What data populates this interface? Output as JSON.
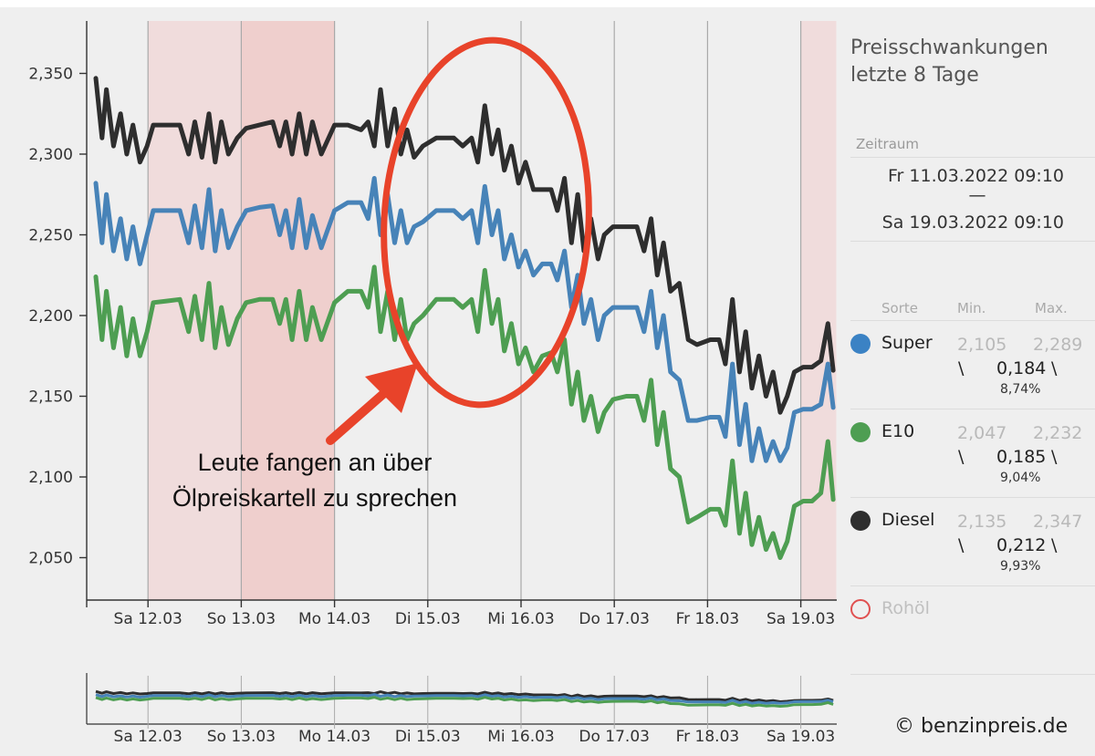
{
  "chart_data": {
    "type": "line",
    "title": "Preisschwankungen letzte 8 Tage",
    "ylim": [
      2.0,
      2.375
    ],
    "y_ticks": [
      "2,350",
      "2,300",
      "2,250",
      "2,200",
      "2,150",
      "2,100",
      "2,050"
    ],
    "y_tick_values": [
      2.35,
      2.3,
      2.25,
      2.2,
      2.15,
      2.1,
      2.05
    ],
    "x_ticks": [
      "Sa 12.03",
      "So 13.03",
      "Mo 14.03",
      "Di 15.03",
      "Mi 16.03",
      "Do 17.03",
      "Fr 18.03",
      "Sa 19.03"
    ],
    "x_tick_days": [
      1,
      2,
      3,
      4,
      5,
      6,
      7,
      8
    ],
    "x_range_days": [
      0,
      8
    ],
    "weekend_shading": [
      {
        "from": 1.0,
        "to": 2.0,
        "color": "#f0dcdc"
      },
      {
        "from": 2.0,
        "to": 3.0,
        "color": "#efcfcd"
      },
      {
        "from": 8.0,
        "to": 8.38,
        "color": "#f0dcdc"
      }
    ],
    "series": [
      {
        "name": "Diesel",
        "color": "#2e2e2e",
        "points": [
          [
            0.0,
            2.347
          ],
          [
            0.07,
            2.31
          ],
          [
            0.12,
            2.34
          ],
          [
            0.2,
            2.305
          ],
          [
            0.28,
            2.325
          ],
          [
            0.35,
            2.3
          ],
          [
            0.42,
            2.318
          ],
          [
            0.5,
            2.295
          ],
          [
            0.58,
            2.305
          ],
          [
            0.65,
            2.318
          ],
          [
            0.8,
            2.318
          ],
          [
            0.95,
            2.318
          ],
          [
            1.05,
            2.3
          ],
          [
            1.12,
            2.32
          ],
          [
            1.2,
            2.298
          ],
          [
            1.28,
            2.325
          ],
          [
            1.35,
            2.295
          ],
          [
            1.42,
            2.32
          ],
          [
            1.5,
            2.3
          ],
          [
            1.6,
            2.31
          ],
          [
            1.7,
            2.316
          ],
          [
            1.85,
            2.318
          ],
          [
            2.0,
            2.32
          ],
          [
            2.08,
            2.305
          ],
          [
            2.15,
            2.32
          ],
          [
            2.22,
            2.3
          ],
          [
            2.3,
            2.325
          ],
          [
            2.38,
            2.3
          ],
          [
            2.45,
            2.32
          ],
          [
            2.55,
            2.3
          ],
          [
            2.7,
            2.318
          ],
          [
            2.85,
            2.318
          ],
          [
            3.0,
            2.315
          ],
          [
            3.08,
            2.32
          ],
          [
            3.15,
            2.305
          ],
          [
            3.22,
            2.34
          ],
          [
            3.3,
            2.305
          ],
          [
            3.38,
            2.328
          ],
          [
            3.45,
            2.3
          ],
          [
            3.52,
            2.315
          ],
          [
            3.6,
            2.298
          ],
          [
            3.7,
            2.305
          ],
          [
            3.85,
            2.31
          ],
          [
            4.05,
            2.31
          ],
          [
            4.15,
            2.305
          ],
          [
            4.25,
            2.31
          ],
          [
            4.32,
            2.295
          ],
          [
            4.4,
            2.33
          ],
          [
            4.48,
            2.3
          ],
          [
            4.55,
            2.315
          ],
          [
            4.62,
            2.29
          ],
          [
            4.7,
            2.305
          ],
          [
            4.78,
            2.282
          ],
          [
            4.86,
            2.295
          ],
          [
            4.95,
            2.278
          ],
          [
            5.05,
            2.278
          ],
          [
            5.15,
            2.278
          ],
          [
            5.22,
            2.265
          ],
          [
            5.3,
            2.285
          ],
          [
            5.38,
            2.245
          ],
          [
            5.45,
            2.275
          ],
          [
            5.52,
            2.24
          ],
          [
            5.6,
            2.26
          ],
          [
            5.68,
            2.235
          ],
          [
            5.75,
            2.25
          ],
          [
            5.85,
            2.255
          ],
          [
            6.0,
            2.255
          ],
          [
            6.12,
            2.255
          ],
          [
            6.2,
            2.24
          ],
          [
            6.28,
            2.26
          ],
          [
            6.35,
            2.225
          ],
          [
            6.42,
            2.245
          ],
          [
            6.5,
            2.215
          ],
          [
            6.6,
            2.22
          ],
          [
            6.7,
            2.185
          ],
          [
            6.8,
            2.182
          ],
          [
            6.95,
            2.185
          ],
          [
            7.05,
            2.185
          ],
          [
            7.12,
            2.17
          ],
          [
            7.2,
            2.21
          ],
          [
            7.28,
            2.165
          ],
          [
            7.35,
            2.19
          ],
          [
            7.42,
            2.155
          ],
          [
            7.5,
            2.175
          ],
          [
            7.58,
            2.15
          ],
          [
            7.66,
            2.165
          ],
          [
            7.74,
            2.14
          ],
          [
            7.82,
            2.15
          ],
          [
            7.9,
            2.165
          ],
          [
            8.0,
            2.168
          ],
          [
            8.1,
            2.168
          ],
          [
            8.2,
            2.172
          ],
          [
            8.28,
            2.195
          ],
          [
            8.34,
            2.166
          ]
        ]
      },
      {
        "name": "Super",
        "color": "#4783b8",
        "points": [
          [
            0.0,
            2.282
          ],
          [
            0.07,
            2.245
          ],
          [
            0.12,
            2.275
          ],
          [
            0.2,
            2.24
          ],
          [
            0.28,
            2.26
          ],
          [
            0.35,
            2.235
          ],
          [
            0.42,
            2.255
          ],
          [
            0.5,
            2.232
          ],
          [
            0.58,
            2.25
          ],
          [
            0.65,
            2.265
          ],
          [
            0.8,
            2.265
          ],
          [
            0.95,
            2.265
          ],
          [
            1.05,
            2.245
          ],
          [
            1.12,
            2.268
          ],
          [
            1.2,
            2.242
          ],
          [
            1.28,
            2.278
          ],
          [
            1.35,
            2.24
          ],
          [
            1.42,
            2.265
          ],
          [
            1.5,
            2.242
          ],
          [
            1.6,
            2.255
          ],
          [
            1.7,
            2.265
          ],
          [
            1.85,
            2.267
          ],
          [
            2.0,
            2.268
          ],
          [
            2.08,
            2.25
          ],
          [
            2.15,
            2.265
          ],
          [
            2.22,
            2.242
          ],
          [
            2.3,
            2.272
          ],
          [
            2.38,
            2.242
          ],
          [
            2.45,
            2.262
          ],
          [
            2.55,
            2.242
          ],
          [
            2.7,
            2.265
          ],
          [
            2.85,
            2.27
          ],
          [
            3.0,
            2.27
          ],
          [
            3.08,
            2.26
          ],
          [
            3.15,
            2.285
          ],
          [
            3.22,
            2.25
          ],
          [
            3.3,
            2.275
          ],
          [
            3.38,
            2.245
          ],
          [
            3.45,
            2.265
          ],
          [
            3.52,
            2.245
          ],
          [
            3.6,
            2.255
          ],
          [
            3.7,
            2.258
          ],
          [
            3.85,
            2.265
          ],
          [
            4.05,
            2.265
          ],
          [
            4.15,
            2.26
          ],
          [
            4.25,
            2.265
          ],
          [
            4.32,
            2.245
          ],
          [
            4.4,
            2.28
          ],
          [
            4.48,
            2.25
          ],
          [
            4.55,
            2.265
          ],
          [
            4.62,
            2.235
          ],
          [
            4.7,
            2.25
          ],
          [
            4.78,
            2.23
          ],
          [
            4.86,
            2.24
          ],
          [
            4.95,
            2.225
          ],
          [
            5.05,
            2.232
          ],
          [
            5.15,
            2.232
          ],
          [
            5.22,
            2.222
          ],
          [
            5.3,
            2.24
          ],
          [
            5.38,
            2.205
          ],
          [
            5.45,
            2.225
          ],
          [
            5.52,
            2.195
          ],
          [
            5.6,
            2.21
          ],
          [
            5.68,
            2.185
          ],
          [
            5.75,
            2.2
          ],
          [
            5.85,
            2.205
          ],
          [
            6.0,
            2.205
          ],
          [
            6.12,
            2.205
          ],
          [
            6.2,
            2.19
          ],
          [
            6.28,
            2.215
          ],
          [
            6.35,
            2.18
          ],
          [
            6.42,
            2.2
          ],
          [
            6.5,
            2.165
          ],
          [
            6.6,
            2.16
          ],
          [
            6.7,
            2.135
          ],
          [
            6.8,
            2.135
          ],
          [
            6.95,
            2.137
          ],
          [
            7.05,
            2.137
          ],
          [
            7.12,
            2.125
          ],
          [
            7.2,
            2.17
          ],
          [
            7.28,
            2.12
          ],
          [
            7.35,
            2.145
          ],
          [
            7.42,
            2.11
          ],
          [
            7.5,
            2.13
          ],
          [
            7.58,
            2.11
          ],
          [
            7.66,
            2.122
          ],
          [
            7.74,
            2.11
          ],
          [
            7.82,
            2.118
          ],
          [
            7.9,
            2.14
          ],
          [
            8.0,
            2.142
          ],
          [
            8.1,
            2.142
          ],
          [
            8.2,
            2.145
          ],
          [
            8.28,
            2.17
          ],
          [
            8.34,
            2.143
          ]
        ]
      },
      {
        "name": "E10",
        "color": "#4e9e52",
        "points": [
          [
            0.0,
            2.224
          ],
          [
            0.07,
            2.185
          ],
          [
            0.12,
            2.215
          ],
          [
            0.2,
            2.18
          ],
          [
            0.28,
            2.205
          ],
          [
            0.35,
            2.175
          ],
          [
            0.42,
            2.198
          ],
          [
            0.5,
            2.175
          ],
          [
            0.58,
            2.19
          ],
          [
            0.65,
            2.208
          ],
          [
            0.8,
            2.209
          ],
          [
            0.95,
            2.21
          ],
          [
            1.05,
            2.19
          ],
          [
            1.12,
            2.212
          ],
          [
            1.2,
            2.185
          ],
          [
            1.28,
            2.22
          ],
          [
            1.35,
            2.18
          ],
          [
            1.42,
            2.205
          ],
          [
            1.5,
            2.182
          ],
          [
            1.6,
            2.198
          ],
          [
            1.7,
            2.208
          ],
          [
            1.85,
            2.21
          ],
          [
            2.0,
            2.21
          ],
          [
            2.08,
            2.195
          ],
          [
            2.15,
            2.21
          ],
          [
            2.22,
            2.185
          ],
          [
            2.3,
            2.215
          ],
          [
            2.38,
            2.185
          ],
          [
            2.45,
            2.205
          ],
          [
            2.55,
            2.185
          ],
          [
            2.7,
            2.208
          ],
          [
            2.85,
            2.215
          ],
          [
            3.0,
            2.215
          ],
          [
            3.08,
            2.205
          ],
          [
            3.15,
            2.23
          ],
          [
            3.22,
            2.19
          ],
          [
            3.3,
            2.215
          ],
          [
            3.38,
            2.185
          ],
          [
            3.45,
            2.21
          ],
          [
            3.52,
            2.185
          ],
          [
            3.6,
            2.195
          ],
          [
            3.7,
            2.2
          ],
          [
            3.85,
            2.21
          ],
          [
            4.05,
            2.21
          ],
          [
            4.15,
            2.205
          ],
          [
            4.25,
            2.21
          ],
          [
            4.32,
            2.19
          ],
          [
            4.4,
            2.228
          ],
          [
            4.48,
            2.195
          ],
          [
            4.55,
            2.21
          ],
          [
            4.62,
            2.178
          ],
          [
            4.7,
            2.195
          ],
          [
            4.78,
            2.17
          ],
          [
            4.86,
            2.18
          ],
          [
            4.95,
            2.165
          ],
          [
            5.05,
            2.175
          ],
          [
            5.15,
            2.177
          ],
          [
            5.22,
            2.165
          ],
          [
            5.3,
            2.185
          ],
          [
            5.38,
            2.145
          ],
          [
            5.45,
            2.165
          ],
          [
            5.52,
            2.135
          ],
          [
            5.6,
            2.15
          ],
          [
            5.68,
            2.128
          ],
          [
            5.75,
            2.14
          ],
          [
            5.85,
            2.148
          ],
          [
            6.0,
            2.15
          ],
          [
            6.12,
            2.15
          ],
          [
            6.2,
            2.135
          ],
          [
            6.28,
            2.16
          ],
          [
            6.35,
            2.12
          ],
          [
            6.42,
            2.14
          ],
          [
            6.5,
            2.105
          ],
          [
            6.6,
            2.1
          ],
          [
            6.7,
            2.072
          ],
          [
            6.8,
            2.075
          ],
          [
            6.95,
            2.08
          ],
          [
            7.05,
            2.08
          ],
          [
            7.12,
            2.07
          ],
          [
            7.2,
            2.11
          ],
          [
            7.28,
            2.065
          ],
          [
            7.35,
            2.09
          ],
          [
            7.42,
            2.058
          ],
          [
            7.5,
            2.075
          ],
          [
            7.58,
            2.055
          ],
          [
            7.66,
            2.065
          ],
          [
            7.74,
            2.05
          ],
          [
            7.82,
            2.06
          ],
          [
            7.9,
            2.082
          ],
          [
            8.0,
            2.085
          ],
          [
            8.1,
            2.085
          ],
          [
            8.2,
            2.09
          ],
          [
            8.28,
            2.122
          ],
          [
            8.34,
            2.086
          ]
        ]
      }
    ],
    "annotation": {
      "text_line1": "Leute fangen an über",
      "text_line2": "Ölpreiskartell zu sprechen"
    }
  },
  "panel": {
    "title_line1": "Preisschwankungen",
    "title_line2": "letzte 8 Tage",
    "period_label": "Zeitraum",
    "period_from": "Fr 11.03.2022 09:10",
    "period_sep": "—",
    "period_to": "Sa 19.03.2022 09:10",
    "headers": {
      "sort": "Sorte",
      "min": "Min.",
      "max": "Max."
    },
    "fuels": [
      {
        "name": "Super",
        "color": "#3b82c4",
        "min": "2,105",
        "max": "2,289",
        "trend": "\\",
        "delta": "0,184",
        "pct": "8,74%"
      },
      {
        "name": "E10",
        "color": "#4e9e52",
        "min": "2,047",
        "max": "2,232",
        "trend": "\\",
        "delta": "0,185",
        "pct": "9,04%"
      },
      {
        "name": "Diesel",
        "color": "#2e2e2e",
        "min": "2,135",
        "max": "2,347",
        "trend": "\\",
        "delta": "0,212",
        "pct": "9,93%"
      }
    ],
    "crude": {
      "name": "Rohöl",
      "color": "#e05050"
    }
  },
  "copyright": "© benzinpreis.de"
}
